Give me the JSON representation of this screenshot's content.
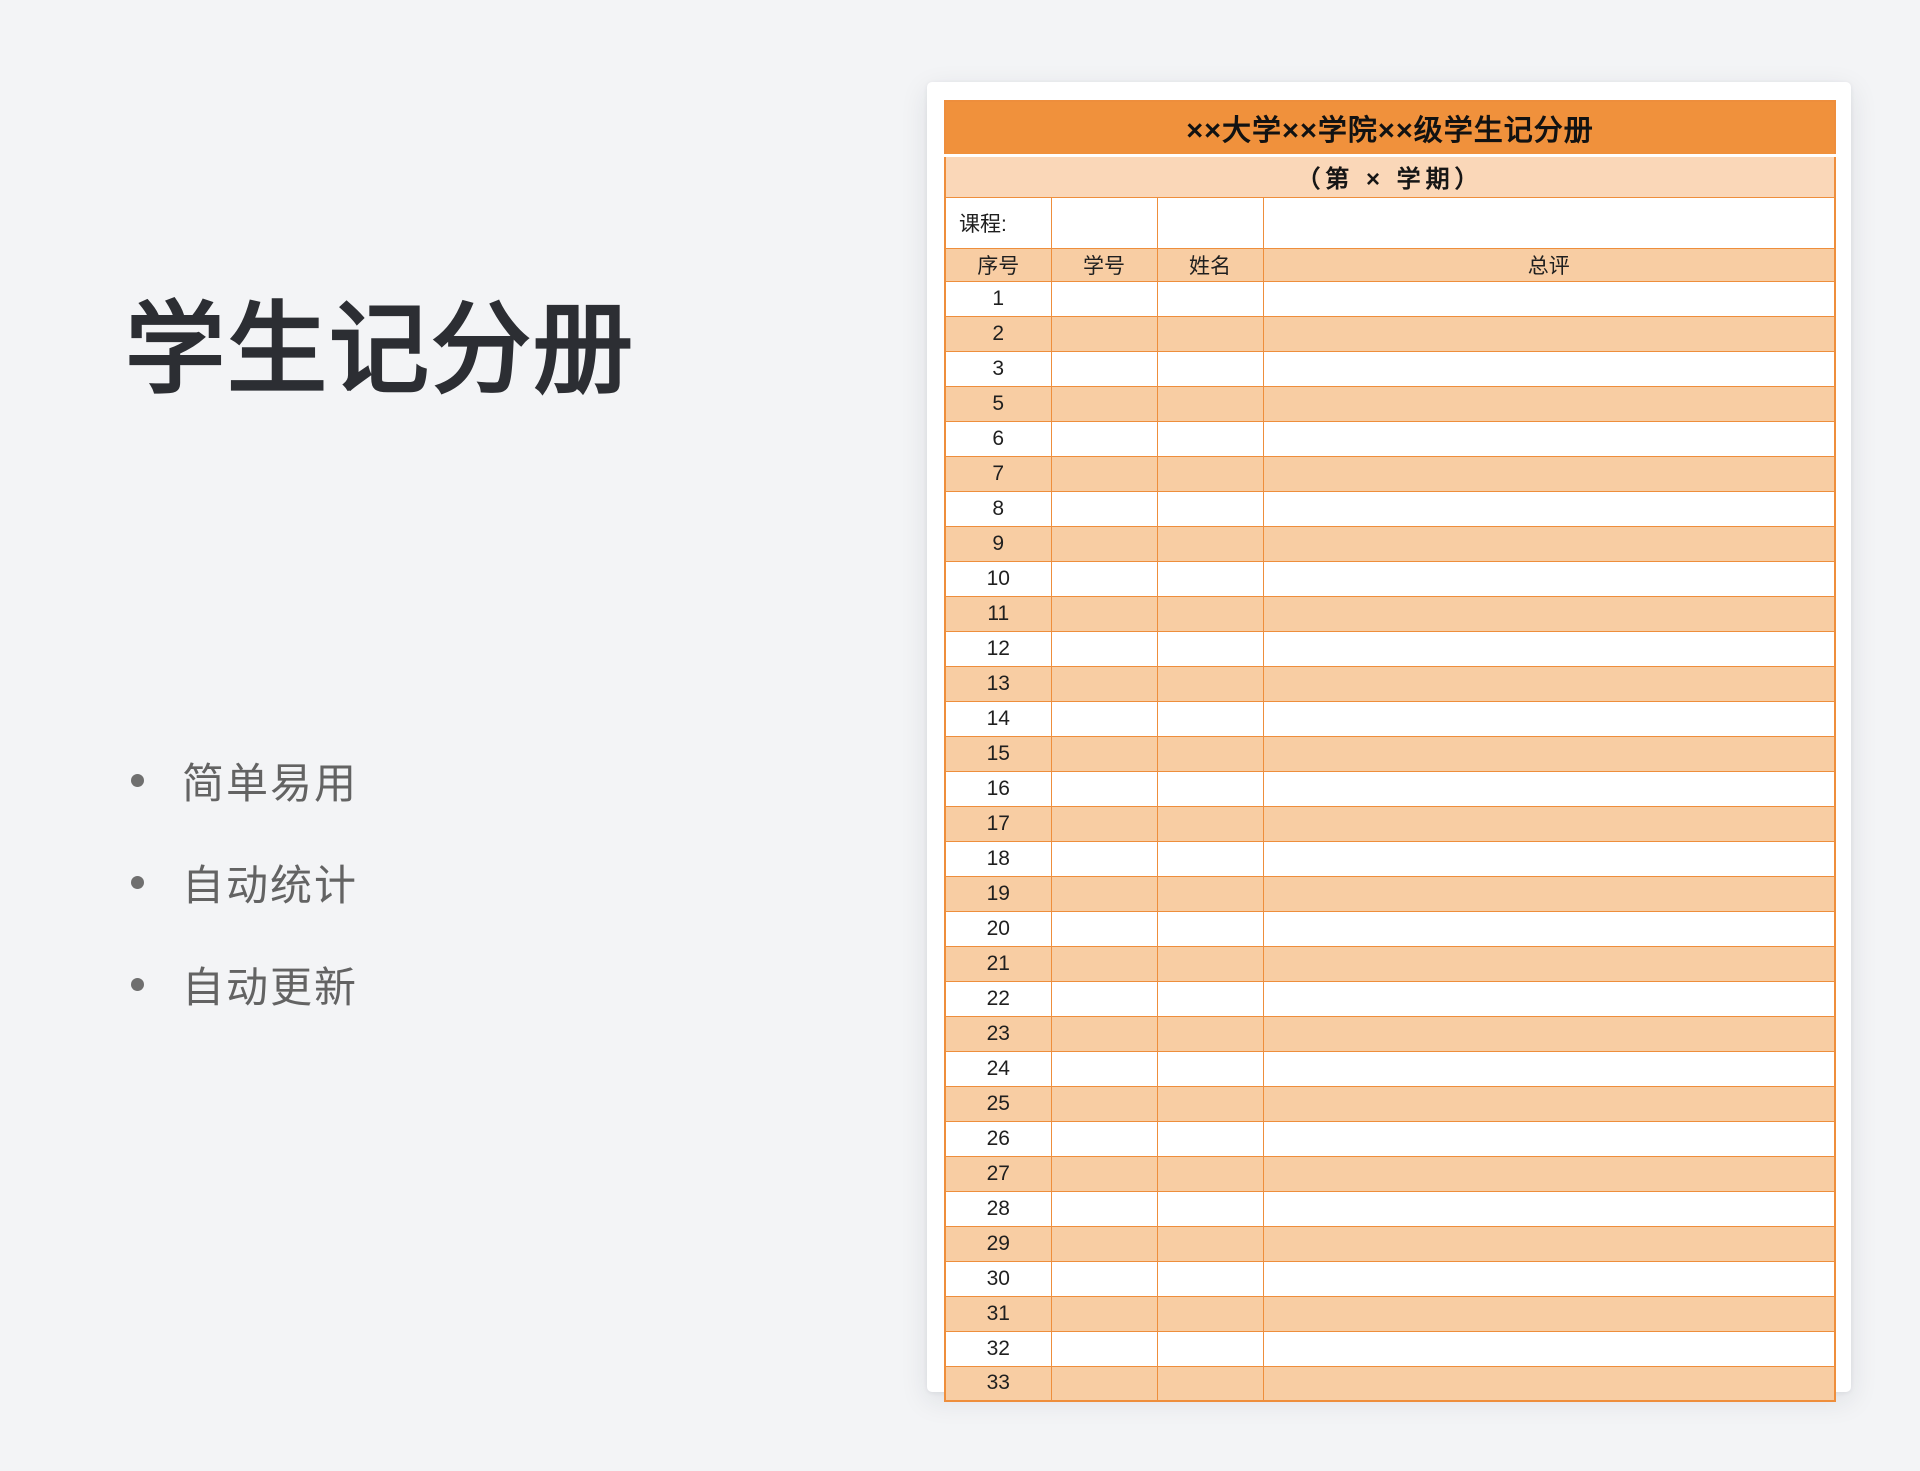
{
  "intro": {
    "title": "学生记分册",
    "bullets": [
      "简单易用",
      "自动统计",
      "自动更新"
    ]
  },
  "workbook": {
    "title": "××大学××学院××级学生记分册",
    "subtitle": "（第 × 学期）",
    "course_label": "课程:",
    "columns": [
      "序号",
      "学号",
      "姓名",
      "总评"
    ],
    "rows": [
      "1",
      "2",
      "3",
      "5",
      "6",
      "7",
      "8",
      "9",
      "10",
      "11",
      "12",
      "13",
      "14",
      "15",
      "16",
      "17",
      "18",
      "19",
      "20",
      "21",
      "22",
      "23",
      "24",
      "25",
      "26",
      "27",
      "28",
      "29",
      "30",
      "31",
      "32",
      "33"
    ]
  },
  "colors": {
    "page_bg": "#F3F4F6",
    "header_orange": "#F0913C",
    "band_light": "#FAD7B8",
    "stripe": "#F8CDA3",
    "border": "#EE8E3C",
    "title_text": "#2C2E33",
    "bullet_text": "#636363"
  }
}
